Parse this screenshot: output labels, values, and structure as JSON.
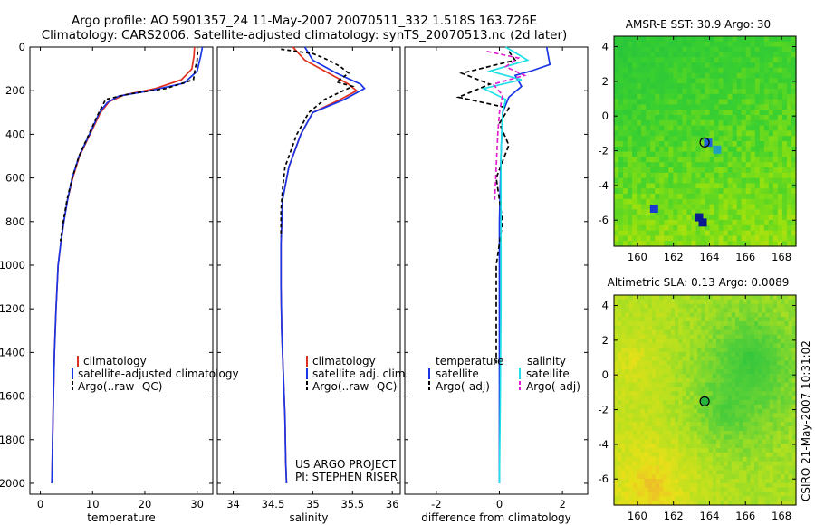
{
  "header": {
    "title_line1": "Argo profile: AO 5901357_24 11-May-2007 20070511_332 1.518S 163.726E",
    "title_line2": "Climatology: CARS2006. Satellite-adjusted climatology: synTS_20070513.nc (2d later)"
  },
  "footer_note": "CSIRO 21-May-2007 10:31:02",
  "project_note": {
    "line1": "US ARGO PROJECT",
    "line2": "PI: STEPHEN RISER"
  },
  "colors": {
    "climatology": "#e03020",
    "satellite": "#1a35e6",
    "argo": "#000000",
    "sat_sal": "#22e0e8",
    "argo_sal": "#e020d0"
  },
  "chart_data": [
    {
      "id": "temperature",
      "type": "line",
      "xlabel": "temperature",
      "ylabel": "",
      "xlim": [
        -2,
        33
      ],
      "ylim": [
        2050,
        0
      ],
      "xticks": [
        0,
        10,
        20,
        30
      ],
      "yticks": [
        0,
        200,
        400,
        600,
        800,
        1000,
        1200,
        1400,
        1600,
        1800,
        2000
      ],
      "legend": [
        "climatology",
        "satellite-adjusted climatology",
        "Argo(..raw -QC)"
      ],
      "legend_placement": "lower-center",
      "series": [
        {
          "name": "climatology",
          "color": "#e03020",
          "dash": "",
          "x": [
            29.5,
            29.4,
            29.0,
            27.0,
            22.0,
            16.0,
            13.2,
            11.5,
            9.5,
            7.5,
            6.2,
            5.2,
            4.5,
            3.9,
            3.4,
            3.0,
            2.7,
            2.5,
            2.35,
            2.25,
            2.2
          ],
          "y": [
            0,
            40,
            100,
            150,
            190,
            220,
            250,
            300,
            400,
            500,
            600,
            700,
            800,
            900,
            1000,
            1200,
            1400,
            1600,
            1800,
            1950,
            2000
          ]
        },
        {
          "name": "satellite-adjusted climatology",
          "color": "#1a35e6",
          "dash": "",
          "x": [
            31.0,
            30.7,
            30.0,
            27.5,
            21.0,
            15.0,
            12.8,
            11.3,
            9.4,
            7.4,
            6.1,
            5.2,
            4.5,
            3.9,
            3.4,
            3.0,
            2.7,
            2.5,
            2.35,
            2.25,
            2.2
          ],
          "y": [
            0,
            40,
            110,
            165,
            200,
            225,
            255,
            300,
            400,
            500,
            600,
            700,
            800,
            900,
            1000,
            1200,
            1400,
            1600,
            1800,
            1950,
            2000
          ]
        },
        {
          "name": "Argo(..raw -QC)",
          "color": "#000000",
          "dash": "4,3",
          "x": [
            30.1,
            30.0,
            29.6,
            29.3,
            24.0,
            17.0,
            12.5,
            11.2,
            9.3,
            7.4,
            6.1,
            5.1,
            4.4,
            3.85
          ],
          "y": [
            20,
            60,
            100,
            150,
            190,
            215,
            240,
            300,
            400,
            500,
            600,
            700,
            800,
            890
          ]
        }
      ]
    },
    {
      "id": "salinity",
      "type": "line",
      "xlabel": "salinity",
      "ylabel": "",
      "xlim": [
        33.8,
        36.1
      ],
      "ylim": [
        2050,
        0
      ],
      "xticks": [
        34,
        34.5,
        35,
        35.5,
        36
      ],
      "yticks": [],
      "legend": [
        "climatology",
        "satellite adj. clim.",
        "Argo(..raw -QC)"
      ],
      "legend_placement": "lower-right",
      "series": [
        {
          "name": "climatology",
          "color": "#e03020",
          "dash": "",
          "x": [
            34.75,
            34.9,
            35.2,
            35.45,
            35.55,
            35.35,
            35.0,
            34.85,
            34.7,
            34.62,
            34.6,
            34.6,
            34.61,
            34.63,
            34.65,
            34.66,
            34.67
          ],
          "y": [
            0,
            60,
            120,
            170,
            200,
            240,
            300,
            400,
            550,
            700,
            900,
            1100,
            1300,
            1500,
            1700,
            1900,
            2000
          ]
        },
        {
          "name": "satellite adj. clim.",
          "color": "#1a35e6",
          "dash": "",
          "x": [
            34.9,
            35.0,
            35.3,
            35.6,
            35.65,
            35.4,
            35.0,
            34.85,
            34.7,
            34.62,
            34.6,
            34.6,
            34.61,
            34.63,
            34.65,
            34.66,
            34.67
          ],
          "y": [
            0,
            60,
            120,
            170,
            190,
            240,
            300,
            400,
            550,
            700,
            900,
            1100,
            1300,
            1500,
            1700,
            1900,
            2000
          ]
        },
        {
          "name": "Argo(..raw -QC)",
          "color": "#000000",
          "dash": "4,3",
          "x": [
            34.6,
            35.0,
            35.2,
            35.35,
            35.45,
            35.3,
            35.5,
            35.15,
            34.95,
            34.8,
            34.65,
            34.62,
            34.6,
            34.6
          ],
          "y": [
            10,
            30,
            60,
            90,
            120,
            160,
            180,
            240,
            300,
            400,
            550,
            650,
            750,
            870
          ]
        }
      ]
    },
    {
      "id": "difference",
      "type": "line",
      "xlabel": "difference from climatology",
      "ylabel": "",
      "xlim": [
        -3.0,
        2.8
      ],
      "ylim": [
        2050,
        0
      ],
      "xticks": [
        -2,
        0,
        2
      ],
      "yticks": [],
      "legend": [
        "temperature",
        "satellite",
        "Argo(-adj)",
        "salinity",
        "satellite",
        "Argo(-adj)"
      ],
      "legend_placement": "lower-center",
      "series": [
        {
          "name": "satellite",
          "color": "#1a35e6",
          "dash": "",
          "x": [
            1.5,
            1.6,
            1.0,
            0.5,
            0.7,
            0.3,
            0.1,
            0.05,
            0.0,
            0.0,
            0.0,
            0.0
          ],
          "y": [
            0,
            80,
            110,
            130,
            180,
            230,
            300,
            500,
            800,
            1200,
            1600,
            2000
          ]
        },
        {
          "name": "Argo(-adj)",
          "color": "#000000",
          "dash": "5,3",
          "x": [
            0.3,
            0.5,
            -1.2,
            -0.3,
            -1.3,
            0.3,
            0.0,
            0.3,
            -0.1,
            0.1,
            -0.1,
            -0.1
          ],
          "y": [
            20,
            60,
            120,
            170,
            230,
            280,
            350,
            450,
            600,
            800,
            1000,
            1450
          ]
        },
        {
          "name": "satellite",
          "color": "#22e0e8",
          "dash": "",
          "x": [
            0.2,
            0.9,
            -0.3,
            0.7,
            -0.5,
            0.2,
            0.1,
            0.05,
            0.05,
            0.05,
            0.03,
            0.0
          ],
          "y": [
            0,
            60,
            110,
            150,
            190,
            240,
            300,
            500,
            800,
            1200,
            1600,
            2000
          ]
        },
        {
          "name": "Argo(-adj)",
          "color": "#e020d0",
          "dash": "5,3",
          "x": [
            -0.4,
            0.6,
            0.2,
            0.8,
            -0.2,
            0.1,
            0.0,
            -0.05,
            -0.1,
            -0.15
          ],
          "y": [
            20,
            50,
            90,
            130,
            170,
            220,
            300,
            400,
            550,
            700
          ]
        }
      ]
    },
    {
      "id": "sst_map",
      "type": "heatmap",
      "title": "AMSR-E SST: 30.9 Argo: 30",
      "xlim": [
        158.7,
        168.8
      ],
      "ylim": [
        -7.5,
        4.6
      ],
      "xticks": [
        160,
        162,
        164,
        166,
        168
      ],
      "yticks": [
        -6,
        -4,
        -2,
        0,
        2,
        4
      ],
      "marker": {
        "x": 163.73,
        "y": -1.52
      }
    },
    {
      "id": "sla_map",
      "type": "heatmap",
      "title": "Altimetric SLA: 0.13 Argo: 0.0089",
      "xlim": [
        158.7,
        168.8
      ],
      "ylim": [
        -7.5,
        4.6
      ],
      "xticks": [
        160,
        162,
        164,
        166,
        168
      ],
      "yticks": [
        -6,
        -4,
        -2,
        0,
        2,
        4
      ],
      "marker": {
        "x": 163.73,
        "y": -1.52
      }
    }
  ]
}
